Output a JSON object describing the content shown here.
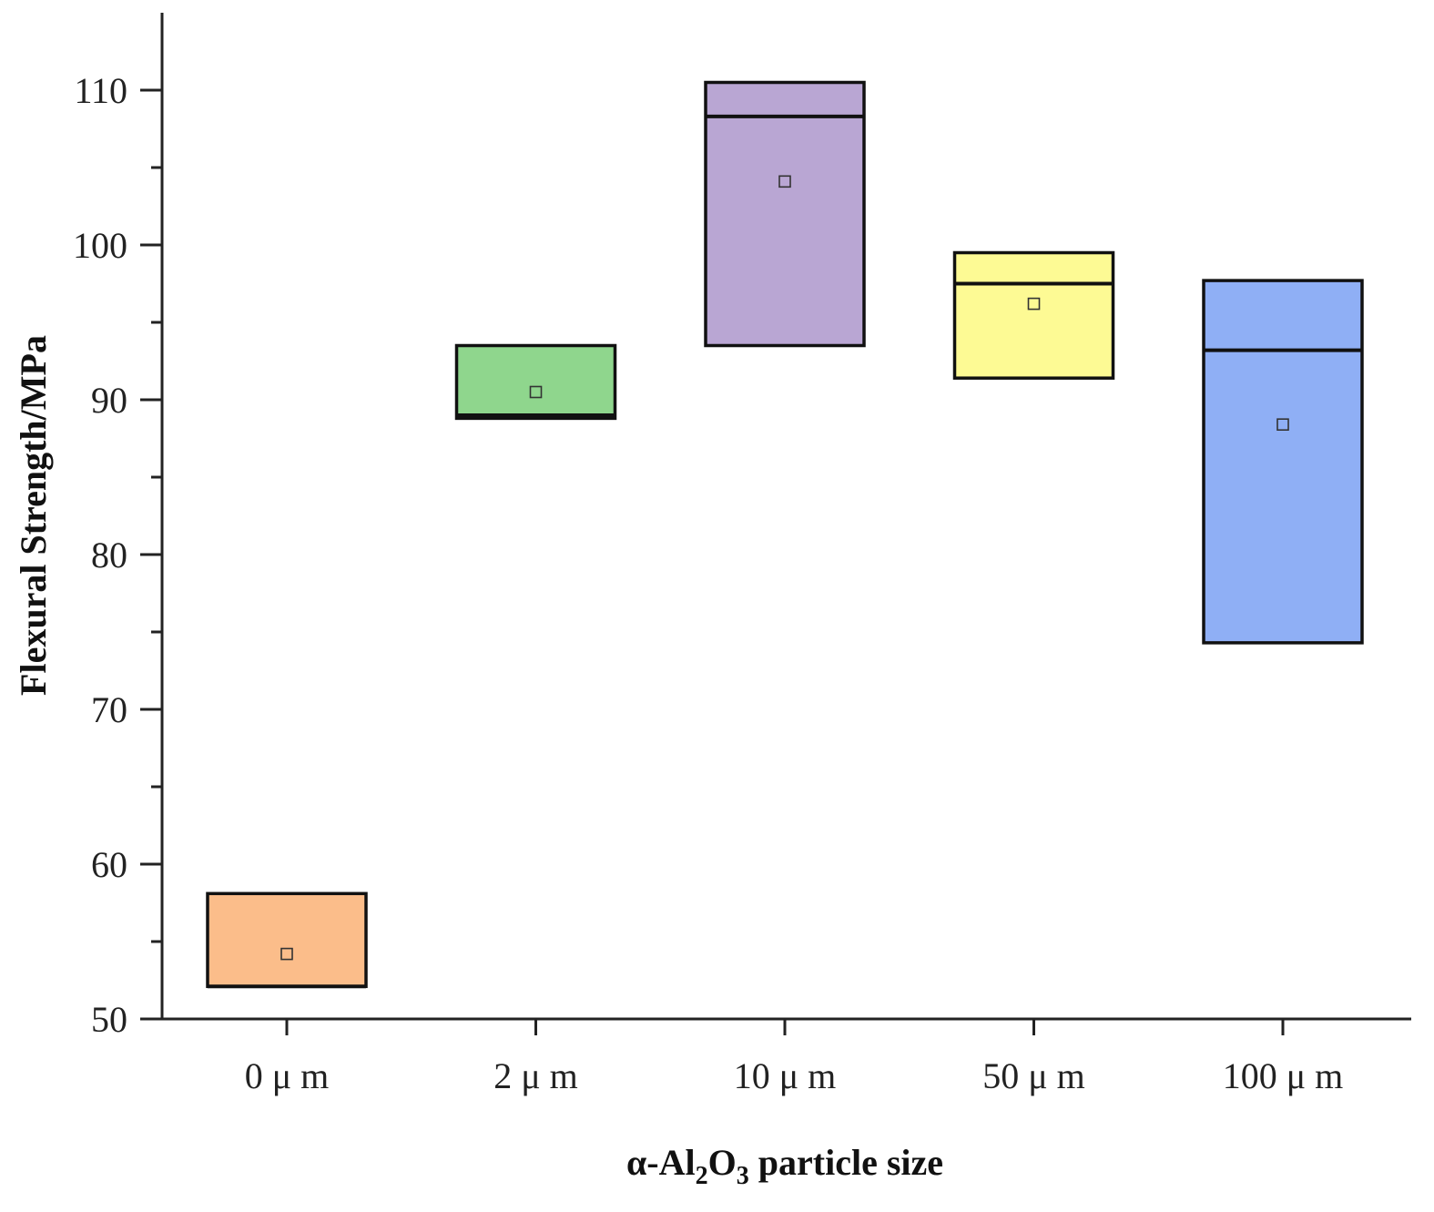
{
  "chart_data": {
    "type": "box",
    "title": "",
    "xlabel": {
      "prefix": "α-Al",
      "sub1": "2",
      "mid": "O",
      "sub2": "3",
      "suffix": " particle size"
    },
    "ylabel": "Flexural Strength/MPa",
    "ylim": [
      50,
      115
    ],
    "yticks": [
      "50",
      "60",
      "70",
      "80",
      "90",
      "100",
      "110"
    ],
    "categories": [
      "0 μ m",
      "2 μ m",
      "10 μ m",
      "50 μ m",
      "100 μ m"
    ],
    "boxes": [
      {
        "category": "0 μ m",
        "q1": 52.1,
        "q3": 58.1,
        "median": 52.1,
        "mean": 54.2,
        "color": "#fbbd8a"
      },
      {
        "category": "2 μ m",
        "q1": 88.8,
        "q3": 93.5,
        "median": 89.0,
        "mean": 90.5,
        "color": "#8fd68d"
      },
      {
        "category": "10 μ m",
        "q1": 93.5,
        "q3": 110.5,
        "median": 108.3,
        "mean": 104.1,
        "color": "#b9a6d3"
      },
      {
        "category": "50 μ m",
        "q1": 91.4,
        "q3": 99.5,
        "median": 97.5,
        "mean": 96.2,
        "color": "#fdfa94"
      },
      {
        "category": "100 μ m",
        "q1": 74.3,
        "q3": 97.7,
        "median": 93.2,
        "mean": 88.4,
        "color": "#8faff5"
      }
    ],
    "grid": false,
    "legend": "none"
  }
}
